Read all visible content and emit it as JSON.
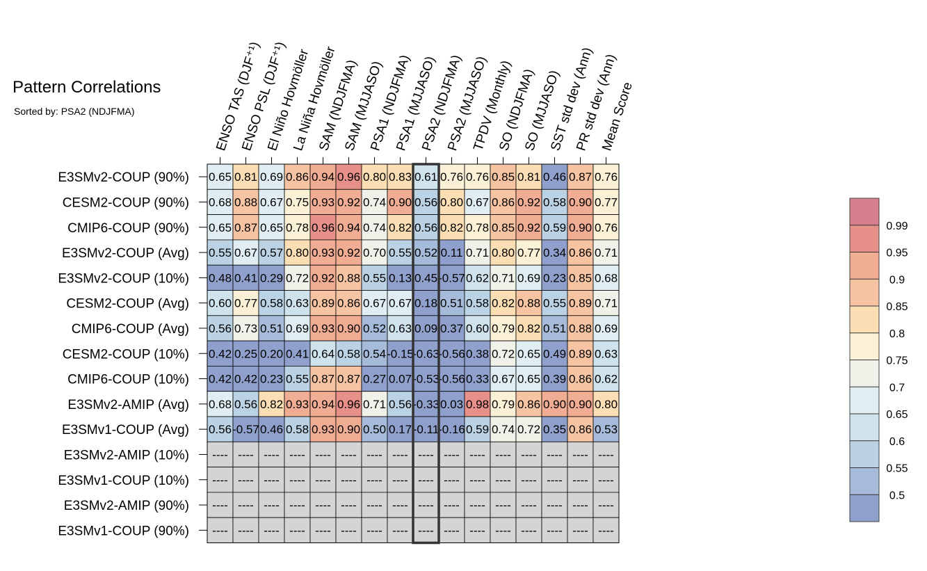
{
  "header": {
    "title": "Pattern Correlations",
    "subtitle": "Sorted by: PSA2 (NDJFMA)"
  },
  "colors": {
    "grid": "#000000",
    "missing": "#d4d4d4",
    "highlight_border": "#333333",
    "scale": [
      "#8fa0cc",
      "#a6bbd9",
      "#bad2e3",
      "#cfe3ec",
      "#e0eef3",
      "#f0f2ea",
      "#fbf1d6",
      "#fbdeb4",
      "#f6c4a2",
      "#f1ac94",
      "#e79089",
      "#d77f8d"
    ]
  },
  "chart_data": {
    "type": "heatmap",
    "title": "Pattern Correlations",
    "subtitle": "Sorted by: PSA2 (NDJFMA)",
    "columns": [
      "ENSO TAS (DJF⁺¹)",
      "ENSO PSL (DJF⁺¹)",
      "El Niño Hovmöller",
      "La Niña Hovmöller",
      "SAM (NDJFMA)",
      "SAM (MJJASO)",
      "PSA1 (NDJFMA)",
      "PSA1 (MJJASO)",
      "PSA2 (NDJFMA)",
      "PSA2 (MJJASO)",
      "TPDV (Monthly)",
      "SO (NDJFMA)",
      "SO (MJJASO)",
      "SST std dev (Ann)",
      "PR std dev (Ann)",
      "Mean Score"
    ],
    "rows": [
      "E3SMv2-COUP (90%)",
      "CESM2-COUP (90%)",
      "CMIP6-COUP (90%)",
      "E3SMv2-COUP (Avg)",
      "E3SMv2-COUP (10%)",
      "CESM2-COUP (Avg)",
      "CMIP6-COUP (Avg)",
      "CESM2-COUP (10%)",
      "CMIP6-COUP (10%)",
      "E3SMv2-AMIP (Avg)",
      "E3SMv1-COUP (Avg)",
      "E3SMv2-AMIP (10%)",
      "E3SMv1-COUP (10%)",
      "E3SMv2-AMIP (90%)",
      "E3SMv1-COUP (90%)"
    ],
    "values": [
      [
        "0.65",
        "0.81",
        "0.69",
        "0.86",
        "0.94",
        "0.96",
        "0.80",
        "0.83",
        "0.61",
        "0.76",
        "0.76",
        "0.85",
        "0.81",
        "0.46",
        "0.87",
        "0.76"
      ],
      [
        "0.68",
        "0.88",
        "0.67",
        "0.75",
        "0.93",
        "0.92",
        "0.74",
        "0.90",
        "0.56",
        "0.80",
        "0.67",
        "0.86",
        "0.92",
        "0.58",
        "0.90",
        "0.77"
      ],
      [
        "0.65",
        "0.87",
        "0.65",
        "0.78",
        "0.96",
        "0.94",
        "0.74",
        "0.82",
        "0.56",
        "0.82",
        "0.78",
        "0.85",
        "0.92",
        "0.59",
        "0.90",
        "0.76"
      ],
      [
        "0.55",
        "0.67",
        "0.57",
        "0.80",
        "0.93",
        "0.92",
        "0.70",
        "0.55",
        "0.52",
        "0.11",
        "0.71",
        "0.80",
        "0.77",
        "0.34",
        "0.86",
        "0.71"
      ],
      [
        "0.48",
        "0.41",
        "0.29",
        "0.72",
        "0.92",
        "0.88",
        "0.55",
        "0.13",
        "0.45",
        "-0.57",
        "0.62",
        "0.71",
        "0.69",
        "0.23",
        "0.85",
        "0.68"
      ],
      [
        "0.60",
        "0.77",
        "0.58",
        "0.63",
        "0.89",
        "0.86",
        "0.67",
        "0.67",
        "0.18",
        "0.51",
        "0.58",
        "0.82",
        "0.88",
        "0.55",
        "0.89",
        "0.71"
      ],
      [
        "0.56",
        "0.73",
        "0.51",
        "0.69",
        "0.93",
        "0.90",
        "0.52",
        "0.63",
        "0.09",
        "0.37",
        "0.60",
        "0.79",
        "0.82",
        "0.51",
        "0.88",
        "0.69"
      ],
      [
        "0.42",
        "0.25",
        "0.20",
        "0.41",
        "0.64",
        "0.58",
        "0.54",
        "-0.15",
        "-0.63",
        "-0.56",
        "0.38",
        "0.72",
        "0.65",
        "0.49",
        "0.89",
        "0.63"
      ],
      [
        "0.42",
        "0.42",
        "0.23",
        "0.55",
        "0.87",
        "0.87",
        "0.27",
        "0.07",
        "-0.53",
        "-0.56",
        "0.33",
        "0.67",
        "0.65",
        "0.39",
        "0.86",
        "0.62"
      ],
      [
        "0.68",
        "0.56",
        "0.82",
        "0.93",
        "0.94",
        "0.96",
        "0.71",
        "0.56",
        "-0.33",
        "0.03",
        "0.98",
        "0.79",
        "0.86",
        "0.90",
        "0.90",
        "0.80"
      ],
      [
        "0.56",
        "-0.57",
        "0.46",
        "0.58",
        "0.93",
        "0.90",
        "0.50",
        "0.17",
        "-0.11",
        "-0.16",
        "0.59",
        "0.74",
        "0.72",
        "0.35",
        "0.86",
        "0.53"
      ],
      [
        "----",
        "----",
        "----",
        "----",
        "----",
        "----",
        "----",
        "----",
        "----",
        "----",
        "----",
        "----",
        "----",
        "----",
        "----",
        "----"
      ],
      [
        "----",
        "----",
        "----",
        "----",
        "----",
        "----",
        "----",
        "----",
        "----",
        "----",
        "----",
        "----",
        "----",
        "----",
        "----",
        "----"
      ],
      [
        "----",
        "----",
        "----",
        "----",
        "----",
        "----",
        "----",
        "----",
        "----",
        "----",
        "----",
        "----",
        "----",
        "----",
        "----",
        "----"
      ],
      [
        "----",
        "----",
        "----",
        "----",
        "----",
        "----",
        "----",
        "----",
        "----",
        "----",
        "----",
        "----",
        "----",
        "----",
        "----",
        "----"
      ]
    ],
    "highlight_column": "PSA2 (NDJFMA)",
    "colorbar": {
      "labels": [
        "0.99",
        "0.95",
        "0.9",
        "0.85",
        "0.8",
        "0.75",
        "0.7",
        "0.65",
        "0.6",
        "0.55",
        "0.5"
      ],
      "thresholds": [
        0.5,
        0.55,
        0.6,
        0.65,
        0.7,
        0.75,
        0.8,
        0.85,
        0.9,
        0.95,
        0.99
      ]
    }
  }
}
